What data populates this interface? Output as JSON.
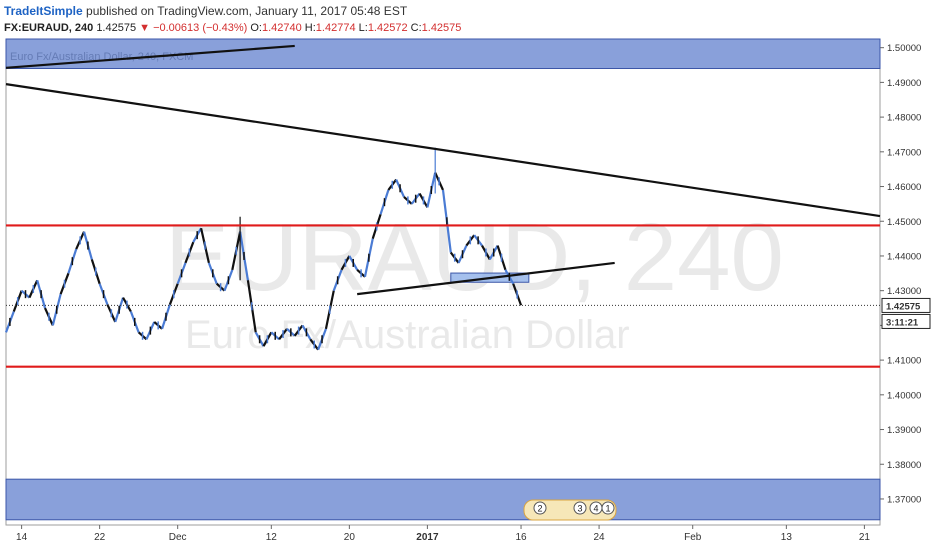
{
  "header": {
    "author": "TradeItSimple",
    "published_text": "published on TradingView.com, January 11, 2017 05:48 EST"
  },
  "quote": {
    "symbol": "FX:EURAUD, 240",
    "last": "1.42575",
    "change": "▼ −0.00613 (−0.43%)",
    "open_label": "O:",
    "open": "1.42740",
    "high_label": "H:",
    "high": "1.42774",
    "low_label": "L:",
    "low": "1.42572",
    "close_label": "C:",
    "close": "1.42575"
  },
  "chart_data": {
    "type": "line",
    "title": "Euro Fx/Australian Dollar, 240, FXCM",
    "watermark": "EURAUD, 240",
    "watermark_sub": "Euro Fx/Australian Dollar",
    "ylim": [
      1.3625,
      1.5025
    ],
    "y_ticks": [
      "1.50000",
      "1.49000",
      "1.48000",
      "1.47000",
      "1.46000",
      "1.45000",
      "1.44000",
      "1.43000",
      "1.42000",
      "1.41000",
      "1.40000",
      "1.39000",
      "1.38000",
      "1.37000"
    ],
    "y_tick_values": [
      1.5,
      1.49,
      1.48,
      1.47,
      1.46,
      1.45,
      1.44,
      1.43,
      1.42,
      1.41,
      1.4,
      1.39,
      1.38,
      1.37
    ],
    "x_ticks": [
      "14",
      "22",
      "Dec",
      "12",
      "20",
      "2017",
      "16",
      "24",
      "Feb",
      "13",
      "21"
    ],
    "x_tick_index": [
      2,
      12,
      22,
      34,
      44,
      54,
      66,
      76,
      88,
      100,
      110
    ],
    "x_range": [
      0,
      112
    ],
    "last_price_label": "1.42575",
    "countdown_label": "3:11:21",
    "last_price": 1.42575,
    "series": [
      {
        "values": [
          [
            0,
            1.418
          ],
          [
            1,
            1.424
          ],
          [
            2,
            1.43
          ],
          [
            3,
            1.428
          ],
          [
            4,
            1.433
          ],
          [
            5,
            1.425
          ],
          [
            6,
            1.42
          ],
          [
            7,
            1.429
          ],
          [
            8,
            1.435
          ],
          [
            9,
            1.442
          ],
          [
            10,
            1.447
          ],
          [
            11,
            1.439
          ],
          [
            12,
            1.432
          ],
          [
            13,
            1.426
          ],
          [
            14,
            1.421
          ],
          [
            15,
            1.428
          ],
          [
            16,
            1.424
          ],
          [
            17,
            1.418
          ],
          [
            18,
            1.416
          ],
          [
            19,
            1.421
          ],
          [
            20,
            1.419
          ],
          [
            21,
            1.426
          ],
          [
            22,
            1.432
          ],
          [
            23,
            1.438
          ],
          [
            24,
            1.444
          ],
          [
            25,
            1.448
          ],
          [
            26,
            1.438
          ],
          [
            27,
            1.432
          ],
          [
            28,
            1.43
          ],
          [
            29,
            1.436
          ],
          [
            30,
            1.447
          ],
          [
            31,
            1.433
          ],
          [
            32,
            1.418
          ],
          [
            33,
            1.414
          ],
          [
            34,
            1.418
          ],
          [
            35,
            1.416
          ],
          [
            36,
            1.419
          ],
          [
            37,
            1.417
          ],
          [
            38,
            1.42
          ],
          [
            39,
            1.416
          ],
          [
            40,
            1.413
          ],
          [
            41,
            1.419
          ],
          [
            42,
            1.43
          ],
          [
            43,
            1.436
          ],
          [
            44,
            1.44
          ],
          [
            45,
            1.436
          ],
          [
            46,
            1.434
          ],
          [
            47,
            1.445
          ],
          [
            48,
            1.452
          ],
          [
            49,
            1.459
          ],
          [
            50,
            1.462
          ],
          [
            51,
            1.457
          ],
          [
            52,
            1.455
          ],
          [
            53,
            1.458
          ],
          [
            54,
            1.454
          ],
          [
            55,
            1.464
          ],
          [
            56,
            1.459
          ],
          [
            57,
            1.441
          ],
          [
            58,
            1.438
          ],
          [
            59,
            1.443
          ],
          [
            60,
            1.446
          ],
          [
            61,
            1.443
          ],
          [
            62,
            1.439
          ],
          [
            63,
            1.443
          ],
          [
            64,
            1.436
          ],
          [
            65,
            1.432
          ],
          [
            66,
            1.4258
          ]
        ]
      }
    ],
    "resistance_lines": [
      1.4488,
      1.4081
    ],
    "supply_zone": [
      1.494,
      1.5025
    ],
    "demand_zone": [
      1.364,
      1.3757
    ],
    "small_zone": {
      "x": [
        57,
        67
      ],
      "y": [
        1.433,
        1.4345
      ]
    },
    "trendlines": [
      {
        "x": [
          0,
          112
        ],
        "y": [
          1.4895,
          1.4515
        ]
      },
      {
        "x": [
          45,
          78
        ],
        "y": [
          1.429,
          1.438
        ]
      },
      {
        "x": [
          0,
          37
        ],
        "y": [
          1.4942,
          1.5005
        ]
      }
    ],
    "event_markers": [
      "2",
      "3",
      "4",
      "1"
    ]
  }
}
